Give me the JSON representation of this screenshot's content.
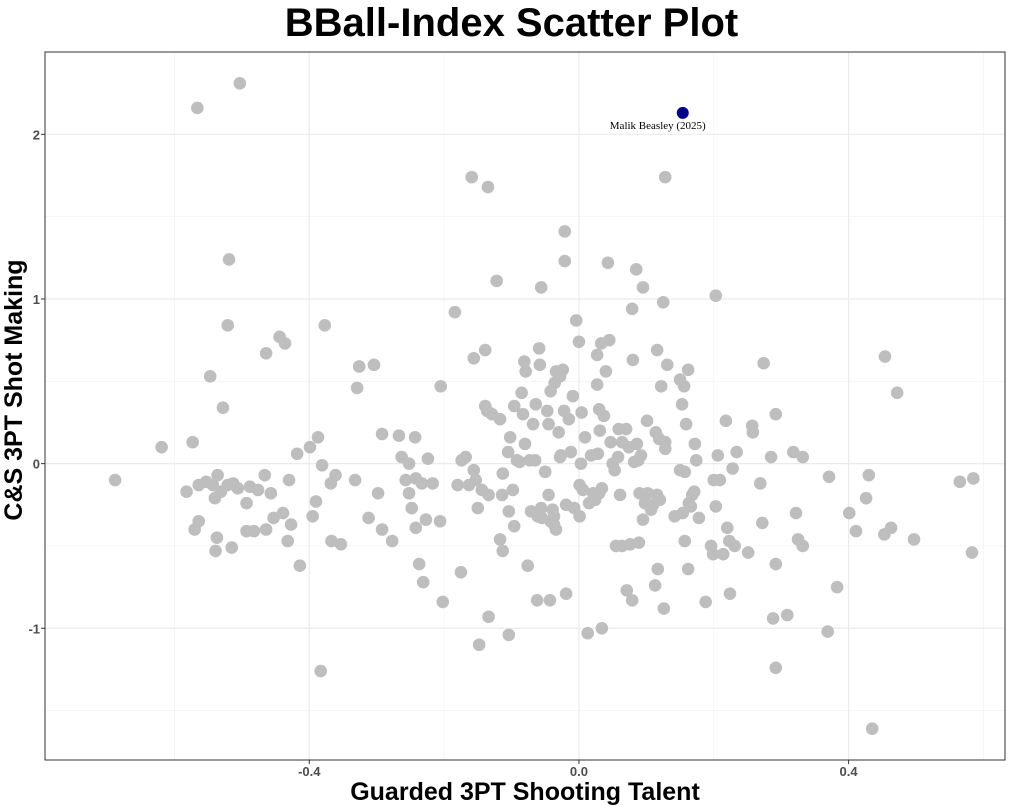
{
  "chart_data": {
    "type": "scatter",
    "title": "BBall-Index Scatter Plot",
    "xlabel": "Guarded 3PT Shooting Talent",
    "ylabel": "C&S 3PT Shot Making",
    "xlim": [
      -0.792,
      0.632
    ],
    "ylim": [
      -1.8,
      2.5
    ],
    "grid": true,
    "x_ticks": [
      {
        "value": -0.4,
        "label": "-0.4"
      },
      {
        "value": 0.0,
        "label": "0.0"
      },
      {
        "value": 0.4,
        "label": "0.4"
      }
    ],
    "y_ticks": [
      {
        "value": -1,
        "label": "-1"
      },
      {
        "value": 0,
        "label": "0"
      },
      {
        "value": 1,
        "label": "1"
      },
      {
        "value": 2,
        "label": "2"
      }
    ],
    "x_minor": [
      -0.6,
      -0.2,
      0.2,
      0.6
    ],
    "y_minor": [
      -1.5,
      -0.5,
      0.5,
      1.5
    ],
    "colors": {
      "points": "#bebebe",
      "highlight": "#00008b",
      "grid": "#ebebeb",
      "border": "#333333"
    },
    "highlight": {
      "name": "Malik Beasley (2025)",
      "x": 0.154,
      "y": 2.13
    },
    "points": [
      [
        -0.688,
        -0.1
      ],
      [
        -0.619,
        0.1
      ],
      [
        -0.582,
        -0.17
      ],
      [
        -0.573,
        0.13
      ],
      [
        -0.566,
        2.16
      ],
      [
        -0.503,
        2.31
      ],
      [
        -0.519,
        1.24
      ],
      [
        -0.521,
        0.84
      ],
      [
        -0.547,
        0.53
      ],
      [
        -0.528,
        0.34
      ],
      [
        -0.57,
        -0.4
      ],
      [
        -0.564,
        -0.35
      ],
      [
        -0.564,
        -0.13
      ],
      [
        -0.553,
        -0.11
      ],
      [
        -0.543,
        -0.13
      ],
      [
        -0.54,
        -0.21
      ],
      [
        -0.537,
        -0.45
      ],
      [
        -0.539,
        -0.53
      ],
      [
        -0.536,
        -0.07
      ],
      [
        -0.531,
        -0.17
      ],
      [
        -0.521,
        -0.13
      ],
      [
        -0.515,
        -0.51
      ],
      [
        -0.513,
        -0.12
      ],
      [
        -0.506,
        -0.15
      ],
      [
        -0.493,
        -0.24
      ],
      [
        -0.488,
        -0.14
      ],
      [
        -0.476,
        -0.16
      ],
      [
        -0.493,
        -0.41
      ],
      [
        -0.482,
        -0.41
      ],
      [
        -0.466,
        -0.07
      ],
      [
        -0.464,
        0.67
      ],
      [
        -0.457,
        -0.18
      ],
      [
        -0.464,
        -0.4
      ],
      [
        -0.453,
        -0.33
      ],
      [
        -0.444,
        0.77
      ],
      [
        -0.439,
        -0.3
      ],
      [
        -0.436,
        0.73
      ],
      [
        -0.43,
        -0.1
      ],
      [
        -0.427,
        -0.37
      ],
      [
        -0.432,
        -0.47
      ],
      [
        -0.418,
        0.06
      ],
      [
        -0.414,
        -0.62
      ],
      [
        -0.399,
        0.1
      ],
      [
        -0.395,
        -0.32
      ],
      [
        -0.39,
        -0.23
      ],
      [
        -0.387,
        0.16
      ],
      [
        -0.381,
        -0.01
      ],
      [
        -0.383,
        -1.26
      ],
      [
        -0.377,
        0.84
      ],
      [
        -0.368,
        -0.12
      ],
      [
        -0.367,
        -0.47
      ],
      [
        -0.361,
        -0.07
      ],
      [
        -0.353,
        -0.49
      ],
      [
        -0.332,
        -0.1
      ],
      [
        -0.329,
        0.46
      ],
      [
        -0.326,
        0.59
      ],
      [
        -0.312,
        -0.33
      ],
      [
        -0.304,
        0.6
      ],
      [
        -0.298,
        -0.18
      ],
      [
        -0.292,
        0.18
      ],
      [
        -0.292,
        -0.4
      ],
      [
        -0.277,
        -0.47
      ],
      [
        -0.267,
        0.17
      ],
      [
        -0.263,
        0.04
      ],
      [
        -0.257,
        -0.1
      ],
      [
        -0.252,
        -0.18
      ],
      [
        -0.252,
        0.0
      ],
      [
        -0.248,
        -0.27
      ],
      [
        -0.242,
        -0.09
      ],
      [
        -0.243,
        0.16
      ],
      [
        -0.242,
        -0.39
      ],
      [
        -0.237,
        -0.61
      ],
      [
        -0.233,
        -0.12
      ],
      [
        -0.227,
        -0.34
      ],
      [
        -0.224,
        0.03
      ],
      [
        -0.231,
        -0.72
      ],
      [
        -0.217,
        -0.12
      ],
      [
        -0.206,
        -0.35
      ],
      [
        -0.205,
        0.47
      ],
      [
        -0.202,
        -0.84
      ],
      [
        -0.184,
        0.92
      ],
      [
        -0.18,
        -0.13
      ],
      [
        -0.175,
        -0.66
      ],
      [
        -0.174,
        0.02
      ],
      [
        -0.168,
        0.04
      ],
      [
        -0.163,
        -0.13
      ],
      [
        -0.159,
        1.74
      ],
      [
        -0.156,
        0.64
      ],
      [
        -0.156,
        -0.04
      ],
      [
        -0.153,
        -0.1
      ],
      [
        -0.15,
        -0.27
      ],
      [
        -0.148,
        -1.1
      ],
      [
        -0.144,
        -0.16
      ],
      [
        -0.139,
        0.69
      ],
      [
        -0.139,
        0.35
      ],
      [
        -0.136,
        0.32
      ],
      [
        -0.135,
        1.68
      ],
      [
        -0.134,
        -0.19
      ],
      [
        -0.134,
        -0.93
      ],
      [
        -0.129,
        0.3
      ],
      [
        -0.122,
        1.11
      ],
      [
        -0.117,
        0.27
      ],
      [
        -0.117,
        -0.46
      ],
      [
        -0.114,
        -0.19
      ],
      [
        -0.113,
        -0.06
      ],
      [
        -0.113,
        -0.53
      ],
      [
        -0.105,
        0.07
      ],
      [
        -0.104,
        -0.29
      ],
      [
        -0.104,
        -1.04
      ],
      [
        -0.102,
        0.16
      ],
      [
        -0.098,
        -0.16
      ],
      [
        -0.096,
        0.35
      ],
      [
        -0.096,
        -0.38
      ],
      [
        -0.092,
        0.02
      ],
      [
        -0.088,
        0.01
      ],
      [
        -0.085,
        0.43
      ],
      [
        -0.083,
        0.3
      ],
      [
        -0.081,
        0.62
      ],
      [
        -0.08,
        0.12
      ],
      [
        -0.079,
        0.56
      ],
      [
        -0.076,
        -0.62
      ],
      [
        -0.073,
        0.02
      ],
      [
        -0.071,
        -0.29
      ],
      [
        -0.068,
        0.24
      ],
      [
        -0.065,
        0.02
      ],
      [
        -0.064,
        0.36
      ],
      [
        -0.062,
        -0.83
      ],
      [
        -0.061,
        -0.32
      ],
      [
        -0.059,
        0.7
      ],
      [
        -0.056,
        1.07
      ],
      [
        -0.058,
        0.6
      ],
      [
        -0.056,
        -0.27
      ],
      [
        -0.055,
        -0.33
      ],
      [
        -0.05,
        -0.05
      ],
      [
        -0.047,
        0.32
      ],
      [
        -0.045,
        0.24
      ],
      [
        -0.045,
        -0.19
      ],
      [
        -0.043,
        -0.83
      ],
      [
        -0.042,
        -0.35
      ],
      [
        -0.042,
        0.44
      ],
      [
        -0.039,
        -0.28
      ],
      [
        -0.037,
        -0.32
      ],
      [
        -0.037,
        -0.37
      ],
      [
        -0.036,
        0.49
      ],
      [
        -0.034,
        0.56
      ],
      [
        -0.034,
        -0.4
      ],
      [
        -0.03,
        0.19
      ],
      [
        -0.028,
        0.04
      ],
      [
        -0.028,
        0.53
      ],
      [
        -0.027,
        0.05
      ],
      [
        -0.024,
        0.57
      ],
      [
        -0.022,
        0.32
      ],
      [
        -0.021,
        1.41
      ],
      [
        -0.021,
        1.23
      ],
      [
        -0.019,
        -0.79
      ],
      [
        -0.019,
        -0.25
      ],
      [
        -0.015,
        0.27
      ],
      [
        -0.012,
        0.07
      ],
      [
        -0.009,
        0.41
      ],
      [
        -0.007,
        -0.27
      ],
      [
        -0.004,
        0.87
      ],
      [
        0.0,
        0.74
      ],
      [
        0.001,
        -0.13
      ],
      [
        0.001,
        -0.32
      ],
      [
        0.003,
        0.0
      ],
      [
        0.004,
        0.31
      ],
      [
        0.006,
        -0.16
      ],
      [
        0.009,
        0.16
      ],
      [
        0.013,
        -1.03
      ],
      [
        0.015,
        -0.24
      ],
      [
        0.018,
        0.05
      ],
      [
        0.021,
        -0.18
      ],
      [
        0.024,
        -0.22
      ],
      [
        0.027,
        0.66
      ],
      [
        0.027,
        0.48
      ],
      [
        0.028,
        0.06
      ],
      [
        0.03,
        -0.18
      ],
      [
        0.03,
        0.33
      ],
      [
        0.031,
        0.2
      ],
      [
        0.033,
        0.73
      ],
      [
        0.034,
        -0.15
      ],
      [
        0.034,
        -1.0
      ],
      [
        0.037,
        0.29
      ],
      [
        0.04,
        0.56
      ],
      [
        0.043,
        1.22
      ],
      [
        0.045,
        0.75
      ],
      [
        0.047,
        0.13
      ],
      [
        0.05,
        0.0
      ],
      [
        0.053,
        -0.04
      ],
      [
        0.055,
        -0.5
      ],
      [
        0.058,
        0.04
      ],
      [
        0.059,
        0.21
      ],
      [
        0.061,
        -0.19
      ],
      [
        0.064,
        -0.5
      ],
      [
        0.064,
        0.13
      ],
      [
        0.07,
        0.21
      ],
      [
        0.071,
        -0.77
      ],
      [
        0.074,
        0.1
      ],
      [
        0.076,
        -0.49
      ],
      [
        0.079,
        -0.83
      ],
      [
        0.079,
        0.94
      ],
      [
        0.08,
        0.63
      ],
      [
        0.082,
        0.01
      ],
      [
        0.085,
        1.18
      ],
      [
        0.086,
        0.12
      ],
      [
        0.088,
        0.02
      ],
      [
        0.089,
        -0.48
      ],
      [
        0.09,
        -0.18
      ],
      [
        0.092,
        0.05
      ],
      [
        0.095,
        1.07
      ],
      [
        0.095,
        -0.34
      ],
      [
        0.098,
        -0.24
      ],
      [
        0.101,
        0.26
      ],
      [
        0.102,
        -0.18
      ],
      [
        0.107,
        -0.28
      ],
      [
        0.11,
        -0.25
      ],
      [
        0.113,
        -0.74
      ],
      [
        0.114,
        0.19
      ],
      [
        0.116,
        0.69
      ],
      [
        0.116,
        -0.19
      ],
      [
        0.117,
        -0.64
      ],
      [
        0.119,
        0.15
      ],
      [
        0.12,
        -0.22
      ],
      [
        0.122,
        0.47
      ],
      [
        0.125,
        0.98
      ],
      [
        0.126,
        -0.88
      ],
      [
        0.128,
        1.74
      ],
      [
        0.128,
        0.09
      ],
      [
        0.128,
        0.13
      ],
      [
        0.131,
        0.6
      ],
      [
        0.142,
        -0.32
      ],
      [
        0.15,
        -0.04
      ],
      [
        0.15,
        0.51
      ],
      [
        0.153,
        0.36
      ],
      [
        0.154,
        -0.3
      ],
      [
        0.156,
        0.47
      ],
      [
        0.157,
        -0.47
      ],
      [
        0.157,
        -0.05
      ],
      [
        0.159,
        0.24
      ],
      [
        0.162,
        0.57
      ],
      [
        0.162,
        -0.64
      ],
      [
        0.163,
        -0.24
      ],
      [
        0.166,
        -0.26
      ],
      [
        0.168,
        -0.19
      ],
      [
        0.171,
        -0.17
      ],
      [
        0.172,
        0.12
      ],
      [
        0.174,
        0.02
      ],
      [
        0.178,
        -0.33
      ],
      [
        0.188,
        -0.84
      ],
      [
        0.196,
        -0.5
      ],
      [
        0.199,
        -0.55
      ],
      [
        0.2,
        -0.1
      ],
      [
        0.203,
        1.02
      ],
      [
        0.203,
        -0.26
      ],
      [
        0.206,
        0.05
      ],
      [
        0.209,
        -0.1
      ],
      [
        0.214,
        -0.55
      ],
      [
        0.218,
        0.26
      ],
      [
        0.22,
        -0.39
      ],
      [
        0.223,
        -0.47
      ],
      [
        0.224,
        -0.79
      ],
      [
        0.228,
        -0.03
      ],
      [
        0.231,
        -0.5
      ],
      [
        0.234,
        0.07
      ],
      [
        0.251,
        -0.54
      ],
      [
        0.257,
        0.23
      ],
      [
        0.258,
        0.19
      ],
      [
        0.269,
        -0.12
      ],
      [
        0.272,
        -0.36
      ],
      [
        0.274,
        0.61
      ],
      [
        0.285,
        0.04
      ],
      [
        0.288,
        -0.94
      ],
      [
        0.292,
        0.3
      ],
      [
        0.292,
        -0.61
      ],
      [
        0.292,
        -1.24
      ],
      [
        0.309,
        -0.92
      ],
      [
        0.318,
        0.07
      ],
      [
        0.322,
        -0.3
      ],
      [
        0.325,
        -0.46
      ],
      [
        0.332,
        -0.5
      ],
      [
        0.332,
        0.04
      ],
      [
        0.369,
        -1.02
      ],
      [
        0.371,
        -0.08
      ],
      [
        0.383,
        -0.75
      ],
      [
        0.401,
        -0.3
      ],
      [
        0.411,
        -0.41
      ],
      [
        0.426,
        -0.21
      ],
      [
        0.43,
        -0.07
      ],
      [
        0.435,
        -1.61
      ],
      [
        0.453,
        -0.43
      ],
      [
        0.454,
        0.65
      ],
      [
        0.463,
        -0.39
      ],
      [
        0.472,
        0.43
      ],
      [
        0.497,
        -0.46
      ],
      [
        0.565,
        -0.11
      ],
      [
        0.583,
        -0.54
      ],
      [
        0.585,
        -0.09
      ]
    ]
  }
}
